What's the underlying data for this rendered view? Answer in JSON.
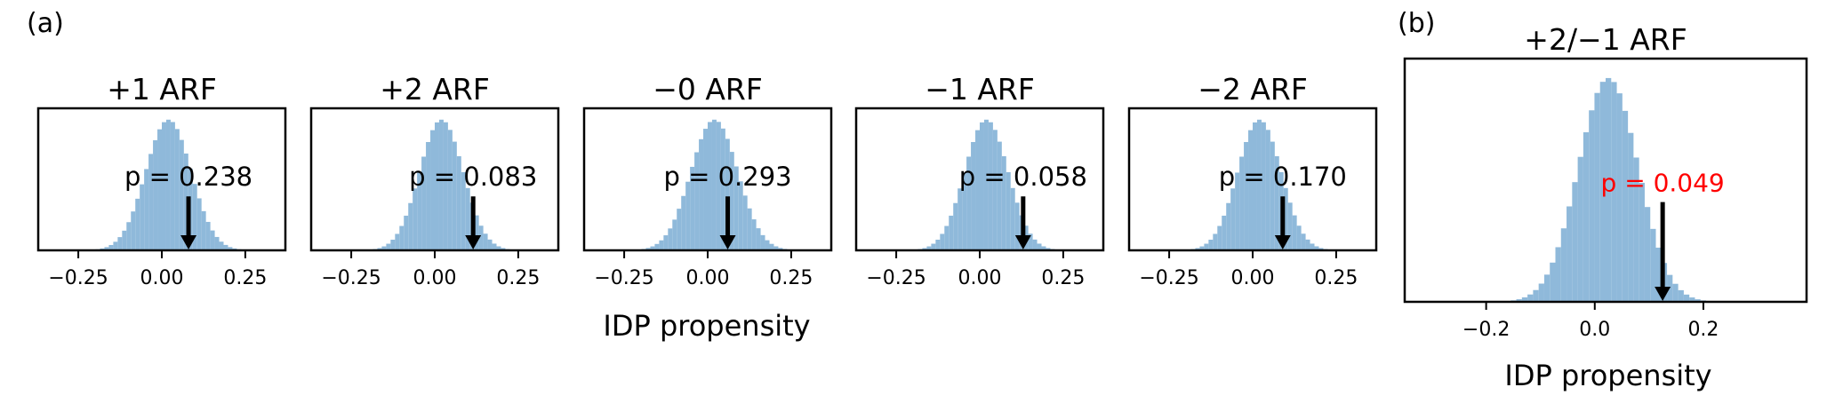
{
  "figure": {
    "panel_a_label": "(a)",
    "panel_b_label": "(b)",
    "xlabel_a": "IDP propensity",
    "xlabel_b": "IDP propensity"
  },
  "colors": {
    "hist": "#8fb9da",
    "arrow": "#000000",
    "highlight": "#ff0000",
    "text": "#000000"
  },
  "chart_data": [
    {
      "type": "bar",
      "panel": "a",
      "title": "+1 ARF",
      "xlabel": "IDP propensity",
      "xlim": [
        -0.37,
        0.37
      ],
      "xticks": [
        -0.25,
        0.0,
        0.25
      ],
      "xtick_labels": [
        "−0.25",
        "0.00",
        "0.25"
      ],
      "distribution": {
        "mean": 0.02,
        "sd": 0.068
      },
      "observed": 0.08,
      "p_label": "p = 0.238",
      "p_value": 0.238
    },
    {
      "type": "bar",
      "panel": "a",
      "title": "+2 ARF",
      "xlabel": "IDP propensity",
      "xlim": [
        -0.37,
        0.37
      ],
      "xticks": [
        -0.25,
        0.0,
        0.25
      ],
      "xtick_labels": [
        "−0.25",
        "0.00",
        "0.25"
      ],
      "distribution": {
        "mean": 0.02,
        "sd": 0.065
      },
      "observed": 0.115,
      "p_label": "p = 0.083",
      "p_value": 0.083
    },
    {
      "type": "bar",
      "panel": "a",
      "title": "−0 ARF",
      "xlabel": "IDP propensity",
      "xlim": [
        -0.37,
        0.37
      ],
      "xticks": [
        -0.25,
        0.0,
        0.25
      ],
      "xtick_labels": [
        "−0.25",
        "0.00",
        "0.25"
      ],
      "distribution": {
        "mean": 0.02,
        "sd": 0.07
      },
      "observed": 0.06,
      "p_label": "p = 0.293",
      "p_value": 0.293
    },
    {
      "type": "bar",
      "panel": "a",
      "title": "−1 ARF",
      "xlabel": "IDP propensity",
      "xlim": [
        -0.37,
        0.37
      ],
      "xticks": [
        -0.25,
        0.0,
        0.25
      ],
      "xtick_labels": [
        "−0.25",
        "0.00",
        "0.25"
      ],
      "distribution": {
        "mean": 0.02,
        "sd": 0.065
      },
      "observed": 0.13,
      "p_label": "p = 0.058",
      "p_value": 0.058
    },
    {
      "type": "bar",
      "panel": "a",
      "title": "−2 ARF",
      "xlabel": "IDP propensity",
      "xlim": [
        -0.37,
        0.37
      ],
      "xticks": [
        -0.25,
        0.0,
        0.25
      ],
      "xtick_labels": [
        "−0.25",
        "0.00",
        "0.25"
      ],
      "distribution": {
        "mean": 0.02,
        "sd": 0.065
      },
      "observed": 0.09,
      "p_label": "p = 0.170",
      "p_value": 0.17
    },
    {
      "type": "bar",
      "panel": "b",
      "title": "+2/−1 ARF",
      "xlabel": "IDP propensity",
      "xlim": [
        -0.35,
        0.39
      ],
      "xticks": [
        -0.2,
        0.0,
        0.2
      ],
      "xtick_labels": [
        "−0.2",
        "0.0",
        "0.2"
      ],
      "distribution": {
        "mean": 0.025,
        "sd": 0.055
      },
      "observed": 0.125,
      "p_label": "p = 0.049",
      "p_value": 0.049,
      "highlight": true
    }
  ]
}
